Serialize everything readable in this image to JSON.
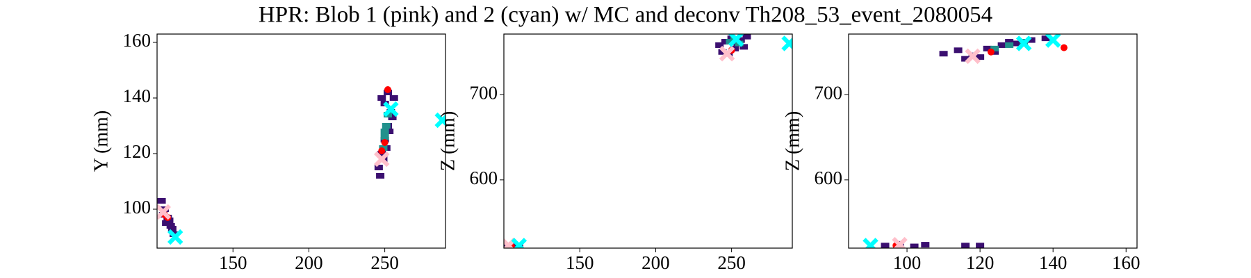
{
  "title": "HPR: Blob 1 (pink) and 2 (cyan) w/ MC and deconv Th208_53_event_2080054",
  "chart_data": [
    {
      "type": "scatter",
      "ylabel": "Y (mm)",
      "xlim": [
        100,
        290
      ],
      "ylim": [
        86,
        163
      ],
      "xticks": [
        150,
        200,
        250
      ],
      "yticks": [
        100,
        120,
        140,
        160
      ],
      "series": [
        {
          "color": "#3b0f70",
          "marker": "s",
          "x": [
            103,
            105,
            107,
            109,
            111,
            104,
            106,
            108,
            110,
            246,
            248,
            250,
            252,
            254,
            256,
            247,
            249,
            251,
            253,
            255,
            248,
            250,
            252
          ],
          "y": [
            103,
            100,
            97,
            94,
            91,
            98,
            95,
            96,
            93,
            115,
            120,
            125,
            130,
            135,
            140,
            112,
            118,
            122,
            128,
            133,
            140,
            138,
            142
          ]
        },
        {
          "color": "#21918c",
          "marker": "s",
          "x": [
            249,
            250,
            251,
            252,
            250
          ],
          "y": [
            122,
            126,
            130,
            134,
            128
          ]
        },
        {
          "color": "#ff0000",
          "marker": "o",
          "x": [
            252,
            250,
            248,
            107,
            105
          ],
          "y": [
            143,
            124,
            121,
            97,
            98
          ]
        },
        {
          "color": "#ffc0cb",
          "marker": "x",
          "x": [
            104,
            248
          ],
          "y": [
            99,
            118
          ]
        },
        {
          "color": "#00ffff",
          "marker": "x",
          "x": [
            112,
            254,
            288
          ],
          "y": [
            90,
            136,
            132
          ]
        }
      ]
    },
    {
      "type": "scatter",
      "ylabel": "Z (mm)",
      "xlim": [
        100,
        290
      ],
      "ylim": [
        520,
        771
      ],
      "xticks": [
        150,
        200,
        250
      ],
      "yticks": [
        600,
        700
      ],
      "series": [
        {
          "color": "#3b0f70",
          "marker": "s",
          "x": [
            242,
            246,
            250,
            254,
            258,
            244,
            248,
            252,
            256,
            260,
            102,
            106,
            110
          ],
          "y": [
            758,
            762,
            766,
            760,
            756,
            750,
            748,
            754,
            764,
            768,
            523,
            524,
            522
          ]
        },
        {
          "color": "#21918c",
          "marker": "s",
          "x": [
            249,
            252,
            255
          ],
          "y": [
            762,
            765,
            760
          ]
        },
        {
          "color": "#ff0000",
          "marker": "o",
          "x": [
            250,
            105
          ],
          "y": [
            752,
            522
          ]
        },
        {
          "color": "#ffc0cb",
          "marker": "x",
          "x": [
            247,
            103
          ],
          "y": [
            748,
            523
          ]
        },
        {
          "color": "#00ffff",
          "marker": "x",
          "x": [
            253,
            110,
            288
          ],
          "y": [
            765,
            523,
            760
          ]
        }
      ]
    },
    {
      "type": "scatter",
      "ylabel": "Z (mm)",
      "xlim": [
        84,
        163
      ],
      "ylim": [
        520,
        771
      ],
      "xticks": [
        100,
        120,
        140,
        160
      ],
      "yticks": [
        600,
        700
      ],
      "series": [
        {
          "color": "#3b0f70",
          "marker": "s",
          "x": [
            110,
            114,
            118,
            122,
            126,
            130,
            134,
            138,
            116,
            120,
            124,
            128,
            94,
            98,
            102,
            105,
            116,
            120
          ],
          "y": [
            748,
            752,
            746,
            754,
            758,
            760,
            764,
            766,
            742,
            744,
            750,
            762,
            523,
            525,
            522,
            524,
            523,
            523
          ]
        },
        {
          "color": "#21918c",
          "marker": "s",
          "x": [
            124,
            128,
            132
          ],
          "y": [
            754,
            758,
            762
          ]
        },
        {
          "color": "#ff0000",
          "marker": "o",
          "x": [
            143,
            123,
            97
          ],
          "y": [
            755,
            750,
            523
          ]
        },
        {
          "color": "#ffc0cb",
          "marker": "x",
          "x": [
            118,
            98
          ],
          "y": [
            745,
            524
          ]
        },
        {
          "color": "#00ffff",
          "marker": "x",
          "x": [
            132,
            140,
            90
          ],
          "y": [
            760,
            764,
            523
          ]
        }
      ]
    }
  ]
}
